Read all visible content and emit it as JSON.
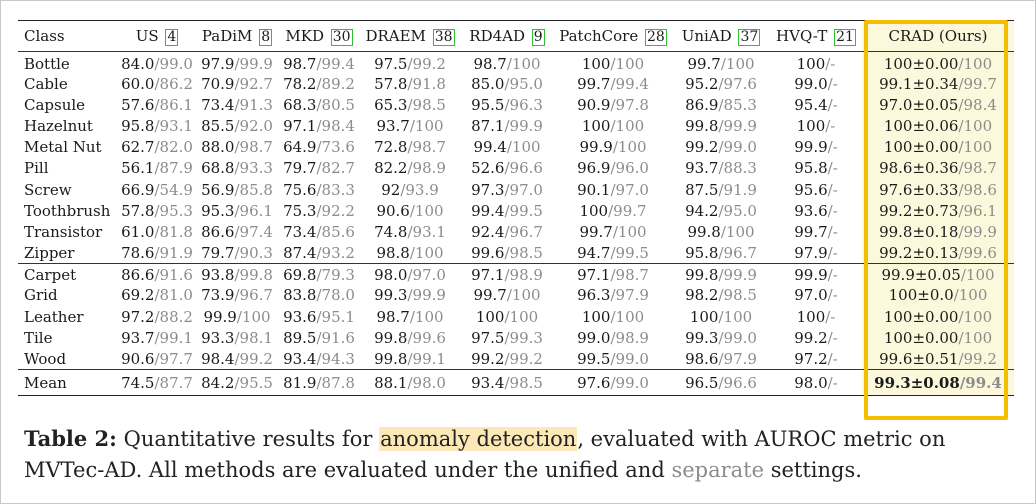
{
  "table": {
    "headers": [
      {
        "name": "Class",
        "ref": ""
      },
      {
        "name": "US",
        "ref": "4"
      },
      {
        "name": "PaDiM",
        "ref": "8"
      },
      {
        "name": "MKD",
        "ref": "30"
      },
      {
        "name": "DRAEM",
        "ref": "38"
      },
      {
        "name": "RD4AD",
        "ref": "9"
      },
      {
        "name": "PatchCore",
        "ref": "28"
      },
      {
        "name": "UniAD",
        "ref": "37"
      },
      {
        "name": "HVQ-T",
        "ref": "21"
      },
      {
        "name": "CRAD (Ours)",
        "ref": ""
      }
    ],
    "groups": [
      [
        {
          "cls": "Bottle",
          "cells": [
            [
              "84.0",
              "/99.0"
            ],
            [
              "97.9",
              "/99.9"
            ],
            [
              "98.7",
              "/99.4"
            ],
            [
              "97.5",
              "/99.2"
            ],
            [
              "98.7",
              "/100"
            ],
            [
              "100",
              "/100"
            ],
            [
              "99.7",
              "/100"
            ],
            [
              "100",
              "/-"
            ],
            [
              "100±0.00",
              "/100"
            ]
          ]
        },
        {
          "cls": "Cable",
          "cells": [
            [
              "60.0",
              "/86.2"
            ],
            [
              "70.9",
              "/92.7"
            ],
            [
              "78.2",
              "/89.2"
            ],
            [
              "57.8",
              "/91.8"
            ],
            [
              "85.0",
              "/95.0"
            ],
            [
              "99.7",
              "/99.4"
            ],
            [
              "95.2",
              "/97.6"
            ],
            [
              "99.0",
              "/-"
            ],
            [
              "99.1±0.34",
              "/99.7"
            ]
          ]
        },
        {
          "cls": "Capsule",
          "cells": [
            [
              "57.6",
              "/86.1"
            ],
            [
              "73.4",
              "/91.3"
            ],
            [
              "68.3",
              "/80.5"
            ],
            [
              "65.3",
              "/98.5"
            ],
            [
              "95.5",
              "/96.3"
            ],
            [
              "90.9",
              "/97.8"
            ],
            [
              "86.9",
              "/85.3"
            ],
            [
              "95.4",
              "/-"
            ],
            [
              "97.0±0.05",
              "/98.4"
            ]
          ]
        },
        {
          "cls": "Hazelnut",
          "cells": [
            [
              "95.8",
              "/93.1"
            ],
            [
              "85.5",
              "/92.0"
            ],
            [
              "97.1",
              "/98.4"
            ],
            [
              "93.7",
              "/100"
            ],
            [
              "87.1",
              "/99.9"
            ],
            [
              "100",
              "/100"
            ],
            [
              "99.8",
              "/99.9"
            ],
            [
              "100",
              "/-"
            ],
            [
              "100±0.06",
              "/100"
            ]
          ]
        },
        {
          "cls": "Metal Nut",
          "cells": [
            [
              "62.7",
              "/82.0"
            ],
            [
              "88.0",
              "/98.7"
            ],
            [
              "64.9",
              "/73.6"
            ],
            [
              "72.8",
              "/98.7"
            ],
            [
              "99.4",
              "/100"
            ],
            [
              "99.9",
              "/100"
            ],
            [
              "99.2",
              "/99.0"
            ],
            [
              "99.9",
              "/-"
            ],
            [
              "100±0.00",
              "/100"
            ]
          ]
        },
        {
          "cls": "Pill",
          "cells": [
            [
              "56.1",
              "/87.9"
            ],
            [
              "68.8",
              "/93.3"
            ],
            [
              "79.7",
              "/82.7"
            ],
            [
              "82.2",
              "/98.9"
            ],
            [
              "52.6",
              "/96.6"
            ],
            [
              "96.9",
              "/96.0"
            ],
            [
              "93.7",
              "/88.3"
            ],
            [
              "95.8",
              "/-"
            ],
            [
              "98.6±0.36",
              "/98.7"
            ]
          ]
        },
        {
          "cls": "Screw",
          "cells": [
            [
              "66.9",
              "/54.9"
            ],
            [
              "56.9",
              "/85.8"
            ],
            [
              "75.6",
              "/83.3"
            ],
            [
              "92",
              "/93.9"
            ],
            [
              "97.3",
              "/97.0"
            ],
            [
              "90.1",
              "/97.0"
            ],
            [
              "87.5",
              "/91.9"
            ],
            [
              "95.6",
              "/-"
            ],
            [
              "97.6±0.33",
              "/98.6"
            ]
          ]
        },
        {
          "cls": "Toothbrush",
          "cells": [
            [
              "57.8",
              "/95.3"
            ],
            [
              "95.3",
              "/96.1"
            ],
            [
              "75.3",
              "/92.2"
            ],
            [
              "90.6",
              "/100"
            ],
            [
              "99.4",
              "/99.5"
            ],
            [
              "100",
              "/99.7"
            ],
            [
              "94.2",
              "/95.0"
            ],
            [
              "93.6",
              "/-"
            ],
            [
              "99.2±0.73",
              "/96.1"
            ]
          ]
        },
        {
          "cls": "Transistor",
          "cells": [
            [
              "61.0",
              "/81.8"
            ],
            [
              "86.6",
              "/97.4"
            ],
            [
              "73.4",
              "/85.6"
            ],
            [
              "74.8",
              "/93.1"
            ],
            [
              "92.4",
              "/96.7"
            ],
            [
              "99.7",
              "/100"
            ],
            [
              "99.8",
              "/100"
            ],
            [
              "99.7",
              "/-"
            ],
            [
              "99.8±0.18",
              "/99.9"
            ]
          ]
        },
        {
          "cls": "Zipper",
          "cells": [
            [
              "78.6",
              "/91.9"
            ],
            [
              "79.7",
              "/90.3"
            ],
            [
              "87.4",
              "/93.2"
            ],
            [
              "98.8",
              "/100"
            ],
            [
              "99.6",
              "/98.5"
            ],
            [
              "94.7",
              "/99.5"
            ],
            [
              "95.8",
              "/96.7"
            ],
            [
              "97.9",
              "/-"
            ],
            [
              "99.2±0.13",
              "/99.6"
            ]
          ]
        }
      ],
      [
        {
          "cls": "Carpet",
          "cells": [
            [
              "86.6",
              "/91.6"
            ],
            [
              "93.8",
              "/99.8"
            ],
            [
              "69.8",
              "/79.3"
            ],
            [
              "98.0",
              "/97.0"
            ],
            [
              "97.1",
              "/98.9"
            ],
            [
              "97.1",
              "/98.7"
            ],
            [
              "99.8",
              "/99.9"
            ],
            [
              "99.9",
              "/-"
            ],
            [
              "99.9±0.05",
              "/100"
            ]
          ]
        },
        {
          "cls": "Grid",
          "cells": [
            [
              "69.2",
              "/81.0"
            ],
            [
              "73.9",
              "/96.7"
            ],
            [
              "83.8",
              "/78.0"
            ],
            [
              "99.3",
              "/99.9"
            ],
            [
              "99.7",
              "/100"
            ],
            [
              "96.3",
              "/97.9"
            ],
            [
              "98.2",
              "/98.5"
            ],
            [
              "97.0",
              "/-"
            ],
            [
              "100±0.0",
              "/100"
            ]
          ]
        },
        {
          "cls": "Leather",
          "cells": [
            [
              "97.2",
              "/88.2"
            ],
            [
              "99.9",
              "/100"
            ],
            [
              "93.6",
              "/95.1"
            ],
            [
              "98.7",
              "/100"
            ],
            [
              "100",
              "/100"
            ],
            [
              "100",
              "/100"
            ],
            [
              "100",
              "/100"
            ],
            [
              "100",
              "/-"
            ],
            [
              "100±0.00",
              "/100"
            ]
          ]
        },
        {
          "cls": "Tile",
          "cells": [
            [
              "93.7",
              "/99.1"
            ],
            [
              "93.3",
              "/98.1"
            ],
            [
              "89.5",
              "/91.6"
            ],
            [
              "99.8",
              "/99.6"
            ],
            [
              "97.5",
              "/99.3"
            ],
            [
              "99.0",
              "/98.9"
            ],
            [
              "99.3",
              "/99.0"
            ],
            [
              "99.2",
              "/-"
            ],
            [
              "100±0.00",
              "/100"
            ]
          ]
        },
        {
          "cls": "Wood",
          "cells": [
            [
              "90.6",
              "/97.7"
            ],
            [
              "98.4",
              "/99.2"
            ],
            [
              "93.4",
              "/94.3"
            ],
            [
              "99.8",
              "/99.1"
            ],
            [
              "99.2",
              "/99.2"
            ],
            [
              "99.5",
              "/99.0"
            ],
            [
              "98.6",
              "/97.9"
            ],
            [
              "97.2",
              "/-"
            ],
            [
              "99.6±0.51",
              "/99.2"
            ]
          ]
        }
      ],
      [
        {
          "cls": "Mean",
          "cells": [
            [
              "74.5",
              "/87.7"
            ],
            [
              "84.2",
              "/95.5"
            ],
            [
              "81.9",
              "/87.8"
            ],
            [
              "88.1",
              "/98.0"
            ],
            [
              "93.4",
              "/98.5"
            ],
            [
              "97.6",
              "/99.0"
            ],
            [
              "96.5",
              "/96.6"
            ],
            [
              "98.0",
              "/-"
            ],
            [
              "99.3±0.08",
              "/99.4"
            ]
          ]
        }
      ]
    ]
  },
  "caption": {
    "label": "Table 2:",
    "part1": " Quantitative results for ",
    "highlight": "anomaly detection",
    "part2": ", evaluated with AUROC metric on MVTec-AD. All methods are evaluated under the unified and ",
    "separate": "separate",
    "part3": " settings."
  },
  "colors": {
    "highlight_box": "#f6be00",
    "separate_text": "#8c8c8c",
    "ref_box": "#2fc12f",
    "crad_column_bg": "#fbf8dc",
    "caption_highlight": "#fde8b8"
  }
}
